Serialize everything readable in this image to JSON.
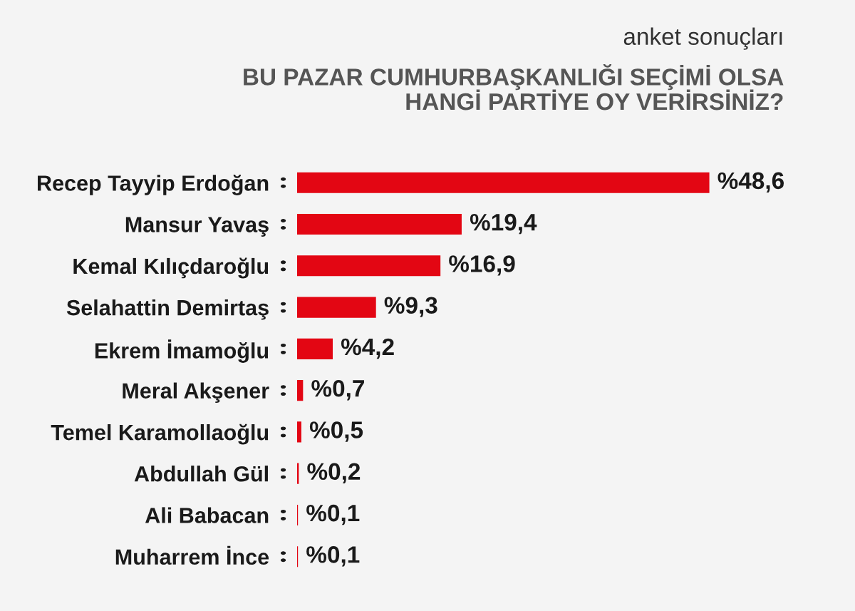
{
  "chart_data": {
    "type": "bar",
    "orientation": "horizontal",
    "subtitle": "anket sonuçları",
    "title": "BU PAZAR CUMHURBAŞKANLIĞI SEÇİMİ OLSA\nHANGİ PARTİYE OY VERİRSİNİZ?",
    "categories": [
      "Recep Tayyip Erdoğan",
      "Mansur Yavaş",
      "Kemal Kılıçdaroğlu",
      "Selahattin Demirtaş",
      "Ekrem İmamoğlu",
      "Meral Akşener",
      "Temel Karamollaoğlu",
      "Abdullah Gül",
      "Ali Babacan",
      "Muharrem İnce"
    ],
    "values": [
      48.6,
      19.4,
      16.9,
      9.3,
      4.2,
      0.7,
      0.5,
      0.2,
      0.1,
      0.1
    ],
    "value_labels": [
      "%48,6",
      "%19,4",
      "%16,9",
      "%9,3",
      "%4,2",
      "%0,7",
      "%0,5",
      "%0,2",
      "%0,1",
      "%0,1"
    ],
    "color": "#e30613",
    "grid": false,
    "legend": false,
    "tick_labels": "y"
  }
}
